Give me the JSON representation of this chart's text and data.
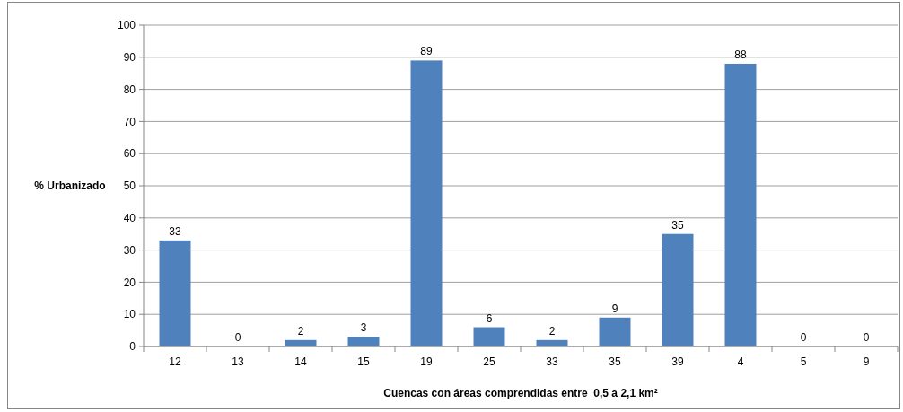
{
  "chart_data": {
    "type": "bar",
    "xlabel": "Cuencas con áreas comprendidas entre  0,5 a 2,1 km²",
    "ylabel": "% Urbanizado",
    "categories": [
      "12",
      "13",
      "14",
      "15",
      "19",
      "25",
      "33",
      "35",
      "39",
      "4",
      "5",
      "9"
    ],
    "values": [
      33,
      0,
      2,
      3,
      89,
      6,
      2,
      9,
      35,
      88,
      0,
      0
    ],
    "color": "#4f81bd",
    "ylim": [
      0,
      100
    ],
    "yticks": [
      0,
      10,
      20,
      30,
      40,
      50,
      60,
      70,
      80,
      90,
      100
    ],
    "grid": "y",
    "data_labels": true
  }
}
